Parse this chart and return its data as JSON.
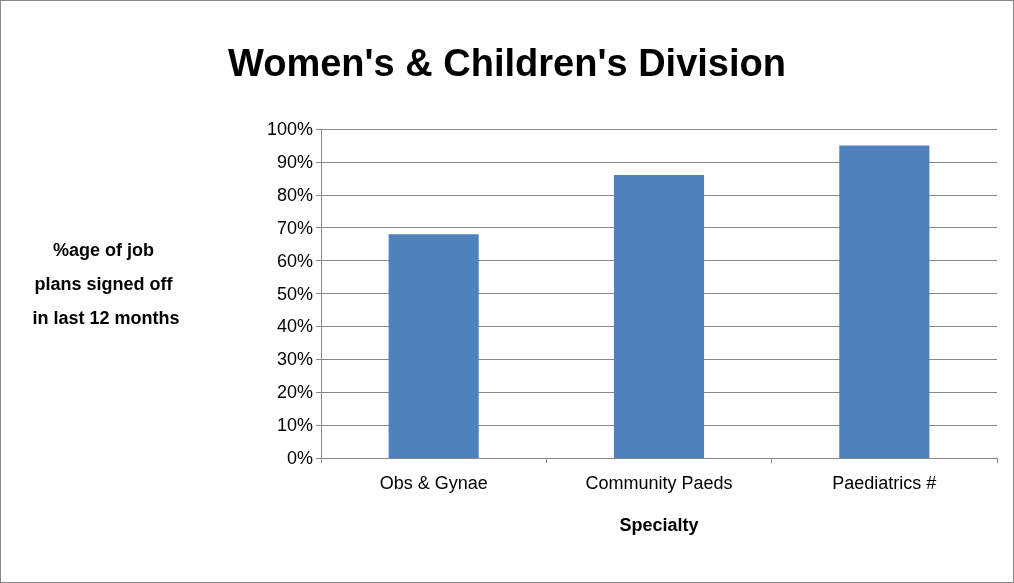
{
  "chart_data": {
    "type": "bar",
    "title": "Women's & Children's Division",
    "xlabel": "Specialty",
    "ylabel": "%age of job plans signed off in last 12 months",
    "categories": [
      "Obs & Gynae",
      "Community Paeds",
      "Paediatrics #"
    ],
    "series": [
      {
        "color": "#4f81bd",
        "values": [
          68,
          86,
          95
        ]
      }
    ],
    "ylim": [
      0,
      100
    ],
    "yticks": [
      {
        "value": 0,
        "label": "0%"
      },
      {
        "value": 10,
        "label": "10%"
      },
      {
        "value": 20,
        "label": "20%"
      },
      {
        "value": 30,
        "label": "30%"
      },
      {
        "value": 40,
        "label": "40%"
      },
      {
        "value": 50,
        "label": "50%"
      },
      {
        "value": 60,
        "label": "60%"
      },
      {
        "value": 70,
        "label": "70%"
      },
      {
        "value": 80,
        "label": "80%"
      },
      {
        "value": 90,
        "label": "90%"
      },
      {
        "value": 100,
        "label": "100%"
      }
    ],
    "grid": "y"
  }
}
